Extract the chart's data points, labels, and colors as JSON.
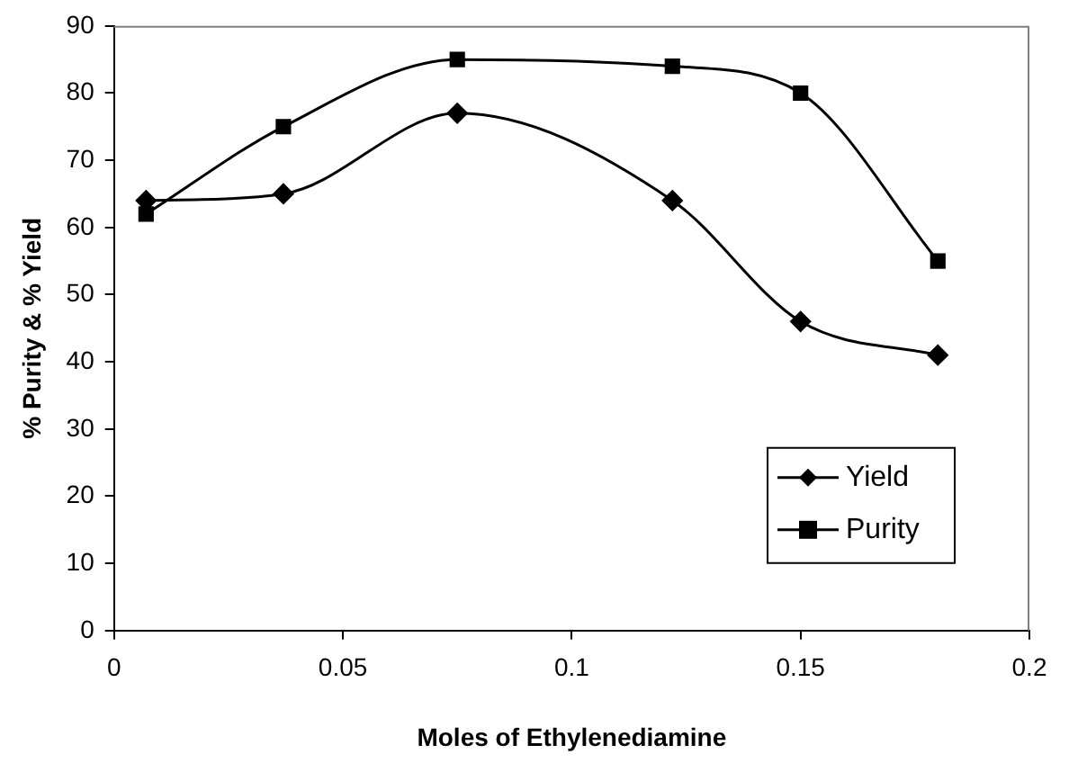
{
  "chart_data": {
    "type": "line",
    "xlabel": "Moles of Ethylenediamine",
    "ylabel": "% Purity & % Yield",
    "x": [
      0.007,
      0.037,
      0.075,
      0.122,
      0.15,
      0.18
    ],
    "series": [
      {
        "name": "Yield",
        "color": "#000000",
        "marker": "diamond",
        "values": [
          64,
          65,
          77,
          64,
          46,
          41
        ]
      },
      {
        "name": "Purity",
        "color": "#000000",
        "marker": "square",
        "values": [
          62,
          75,
          85,
          84,
          80,
          55
        ]
      }
    ],
    "xlim": [
      0,
      0.2
    ],
    "xticks": [
      0,
      0.05,
      0.1,
      0.15,
      0.2
    ],
    "ylim": [
      0,
      90
    ],
    "yticks": [
      0,
      10,
      20,
      30,
      40,
      50,
      60,
      70,
      80,
      90
    ],
    "grid": false,
    "legend": "bottom right",
    "line_style": "solid"
  }
}
